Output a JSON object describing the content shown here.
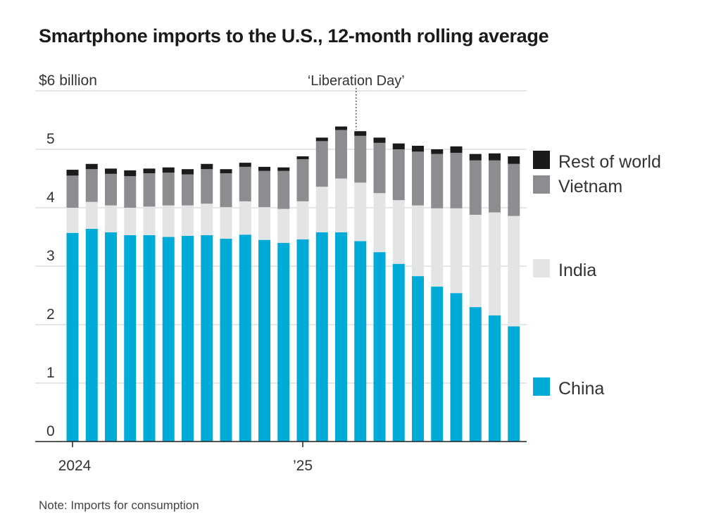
{
  "chart_data": {
    "type": "bar",
    "stacked": true,
    "title": "Smartphone imports to the U.S., 12-month rolling average",
    "note": "Note: Imports for consumption",
    "y_unit_label": "$6 billion",
    "ylim": [
      0,
      6
    ],
    "yticks": [
      0,
      1,
      2,
      3,
      4,
      5,
      6
    ],
    "ytick_labels": [
      "0",
      "1",
      "2",
      "3",
      "4",
      "5",
      "$6 billion"
    ],
    "grid": true,
    "legend_placement": "right",
    "categories": [
      "2024-01",
      "2024-02",
      "2024-03",
      "2024-04",
      "2024-05",
      "2024-06",
      "2024-07",
      "2024-08",
      "2024-09",
      "2024-10",
      "2024-11",
      "2024-12",
      "2025-01",
      "2025-02",
      "2025-03",
      "2025-04",
      "2025-05",
      "2025-06",
      "2025-07",
      "2025-08",
      "2025-09",
      "2025-10",
      "2025-11",
      "2025-12"
    ],
    "xtick_labels": [
      {
        "category": "2024-01",
        "label": "2024"
      },
      {
        "category": "2025-01",
        "label": "’25"
      }
    ],
    "annotation": {
      "category": "2025-04",
      "label": "‘Liberation Day’"
    },
    "series": [
      {
        "name": "China",
        "color": "#00acd7",
        "values": [
          3.57,
          3.64,
          3.58,
          3.53,
          3.53,
          3.5,
          3.52,
          3.53,
          3.47,
          3.54,
          3.45,
          3.4,
          3.46,
          3.58,
          3.58,
          3.43,
          3.24,
          3.04,
          2.83,
          2.65,
          2.54,
          2.3,
          2.16,
          1.97
        ]
      },
      {
        "name": "India",
        "color": "#e3e4e6",
        "values": [
          0.43,
          0.46,
          0.46,
          0.47,
          0.49,
          0.54,
          0.52,
          0.54,
          0.54,
          0.57,
          0.56,
          0.58,
          0.65,
          0.78,
          0.92,
          1.0,
          1.01,
          1.09,
          1.21,
          1.34,
          1.45,
          1.58,
          1.76,
          1.89
        ]
      },
      {
        "name": "Vietnam",
        "color": "#8c8d90",
        "values": [
          0.55,
          0.56,
          0.54,
          0.54,
          0.57,
          0.56,
          0.53,
          0.59,
          0.58,
          0.59,
          0.62,
          0.65,
          0.72,
          0.78,
          0.83,
          0.8,
          0.86,
          0.87,
          0.92,
          0.93,
          0.95,
          0.93,
          0.89,
          0.89
        ]
      },
      {
        "name": "Rest of world",
        "color": "#1b1b1b",
        "values": [
          0.1,
          0.09,
          0.09,
          0.1,
          0.08,
          0.09,
          0.09,
          0.09,
          0.07,
          0.07,
          0.07,
          0.06,
          0.05,
          0.06,
          0.06,
          0.08,
          0.09,
          0.1,
          0.1,
          0.08,
          0.11,
          0.11,
          0.12,
          0.13
        ]
      }
    ]
  }
}
